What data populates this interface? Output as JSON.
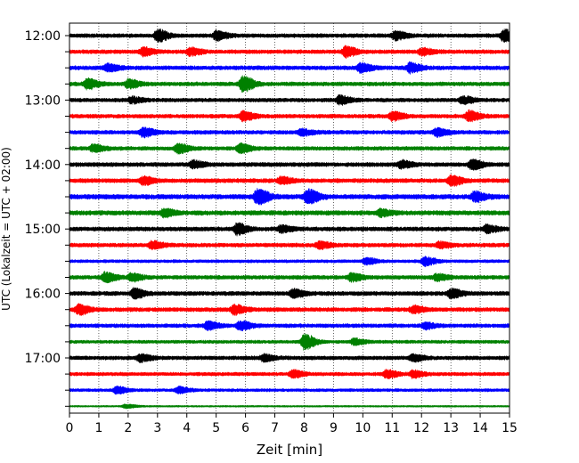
{
  "chart_data": {
    "type": "line",
    "xlabel": "Zeit  [min]",
    "ylabel": "UTC (Lokalzeit = UTC + 02:00)",
    "xlim": [
      0,
      15
    ],
    "xticks": [
      "0",
      "1",
      "2",
      "3",
      "4",
      "5",
      "6",
      "7",
      "8",
      "9",
      "10",
      "11",
      "12",
      "13",
      "14",
      "15"
    ],
    "vertical_grid": true,
    "grid_style": "dotted",
    "trace_interval_minutes": 15,
    "trace_colors": [
      "#000000",
      "#ff0000",
      "#0000ff",
      "#008000"
    ],
    "hour_labels": [
      "12:00",
      "13:00",
      "14:00",
      "15:00",
      "16:00",
      "17:00"
    ],
    "traces": [
      {
        "start": "12:00",
        "color": "#000000",
        "amplitude": 0.34,
        "events": [
          {
            "x": 3.0,
            "amp": 1.0
          },
          {
            "x": 5.0,
            "amp": 0.75
          },
          {
            "x": 11.1,
            "amp": 0.7
          },
          {
            "x": 14.8,
            "amp": 1.0
          }
        ]
      },
      {
        "start": "12:15",
        "color": "#ff0000",
        "amplitude": 0.34,
        "events": [
          {
            "x": 2.5,
            "amp": 0.65
          },
          {
            "x": 4.1,
            "amp": 0.6
          },
          {
            "x": 9.4,
            "amp": 0.85
          },
          {
            "x": 12.0,
            "amp": 0.55
          }
        ]
      },
      {
        "start": "12:30",
        "color": "#0000ff",
        "amplitude": 0.36,
        "events": [
          {
            "x": 1.3,
            "amp": 0.6
          },
          {
            "x": 9.9,
            "amp": 0.7
          },
          {
            "x": 11.6,
            "amp": 0.75
          }
        ]
      },
      {
        "start": "12:45",
        "color": "#008000",
        "amplitude": 0.34,
        "events": [
          {
            "x": 0.6,
            "amp": 0.8
          },
          {
            "x": 2.0,
            "amp": 0.7
          },
          {
            "x": 5.9,
            "amp": 1.25
          }
        ]
      },
      {
        "start": "13:00",
        "color": "#000000",
        "amplitude": 0.33,
        "events": [
          {
            "x": 2.1,
            "amp": 0.5
          },
          {
            "x": 9.2,
            "amp": 0.7
          },
          {
            "x": 13.4,
            "amp": 0.55
          }
        ]
      },
      {
        "start": "13:15",
        "color": "#ff0000",
        "amplitude": 0.34,
        "events": [
          {
            "x": 5.9,
            "amp": 0.75
          },
          {
            "x": 11.0,
            "amp": 0.7
          },
          {
            "x": 13.6,
            "amp": 0.85
          }
        ]
      },
      {
        "start": "13:30",
        "color": "#0000ff",
        "amplitude": 0.34,
        "events": [
          {
            "x": 2.5,
            "amp": 0.7
          },
          {
            "x": 7.9,
            "amp": 0.5
          },
          {
            "x": 12.5,
            "amp": 0.6
          }
        ]
      },
      {
        "start": "13:45",
        "color": "#008000",
        "amplitude": 0.33,
        "events": [
          {
            "x": 0.8,
            "amp": 0.6
          },
          {
            "x": 3.7,
            "amp": 0.75
          },
          {
            "x": 5.8,
            "amp": 0.7
          }
        ]
      },
      {
        "start": "14:00",
        "color": "#000000",
        "amplitude": 0.36,
        "events": [
          {
            "x": 4.2,
            "amp": 0.55
          },
          {
            "x": 11.3,
            "amp": 0.6
          },
          {
            "x": 13.7,
            "amp": 0.8
          }
        ]
      },
      {
        "start": "14:15",
        "color": "#ff0000",
        "amplitude": 0.36,
        "events": [
          {
            "x": 2.5,
            "amp": 0.6
          },
          {
            "x": 7.2,
            "amp": 0.55
          },
          {
            "x": 13.0,
            "amp": 0.8
          }
        ]
      },
      {
        "start": "14:30",
        "color": "#0000ff",
        "amplitude": 0.42,
        "events": [
          {
            "x": 6.4,
            "amp": 1.3
          },
          {
            "x": 8.1,
            "amp": 1.35
          },
          {
            "x": 13.8,
            "amp": 0.75
          }
        ]
      },
      {
        "start": "14:45",
        "color": "#008000",
        "amplitude": 0.4,
        "events": [
          {
            "x": 3.2,
            "amp": 0.6
          },
          {
            "x": 10.6,
            "amp": 0.55
          }
        ]
      },
      {
        "start": "15:00",
        "color": "#000000",
        "amplitude": 0.36,
        "events": [
          {
            "x": 5.7,
            "amp": 0.9
          },
          {
            "x": 7.2,
            "amp": 0.55
          },
          {
            "x": 14.2,
            "amp": 0.6
          }
        ]
      },
      {
        "start": "15:15",
        "color": "#ff0000",
        "amplitude": 0.34,
        "events": [
          {
            "x": 2.8,
            "amp": 0.6
          },
          {
            "x": 8.5,
            "amp": 0.6
          },
          {
            "x": 12.6,
            "amp": 0.5
          }
        ]
      },
      {
        "start": "15:30",
        "color": "#0000ff",
        "amplitude": 0.24,
        "events": [
          {
            "x": 10.1,
            "amp": 0.55
          },
          {
            "x": 12.1,
            "amp": 0.75
          }
        ]
      },
      {
        "start": "15:45",
        "color": "#008000",
        "amplitude": 0.34,
        "events": [
          {
            "x": 1.2,
            "amp": 0.8
          },
          {
            "x": 2.1,
            "amp": 0.6
          },
          {
            "x": 9.6,
            "amp": 0.6
          },
          {
            "x": 12.5,
            "amp": 0.55
          }
        ]
      },
      {
        "start": "16:00",
        "color": "#000000",
        "amplitude": 0.36,
        "events": [
          {
            "x": 2.2,
            "amp": 0.75
          },
          {
            "x": 7.6,
            "amp": 0.65
          },
          {
            "x": 13.0,
            "amp": 0.7
          }
        ]
      },
      {
        "start": "16:15",
        "color": "#ff0000",
        "amplitude": 0.36,
        "events": [
          {
            "x": 0.3,
            "amp": 0.8
          },
          {
            "x": 5.6,
            "amp": 0.75
          },
          {
            "x": 11.7,
            "amp": 0.55
          }
        ]
      },
      {
        "start": "16:30",
        "color": "#0000ff",
        "amplitude": 0.33,
        "events": [
          {
            "x": 4.7,
            "amp": 0.65
          },
          {
            "x": 5.8,
            "amp": 0.75
          },
          {
            "x": 12.1,
            "amp": 0.5
          }
        ]
      },
      {
        "start": "16:45",
        "color": "#008000",
        "amplitude": 0.26,
        "events": [
          {
            "x": 8.0,
            "amp": 1.3
          },
          {
            "x": 9.7,
            "amp": 0.5
          }
        ]
      },
      {
        "start": "17:00",
        "color": "#000000",
        "amplitude": 0.33,
        "events": [
          {
            "x": 2.4,
            "amp": 0.55
          },
          {
            "x": 6.6,
            "amp": 0.5
          },
          {
            "x": 11.7,
            "amp": 0.55
          }
        ]
      },
      {
        "start": "17:15",
        "color": "#ff0000",
        "amplitude": 0.3,
        "events": [
          {
            "x": 7.6,
            "amp": 0.6
          },
          {
            "x": 10.8,
            "amp": 0.65
          },
          {
            "x": 11.7,
            "amp": 0.55
          }
        ]
      },
      {
        "start": "17:30",
        "color": "#0000ff",
        "amplitude": 0.24,
        "events": [
          {
            "x": 1.6,
            "amp": 0.55
          },
          {
            "x": 3.7,
            "amp": 0.5
          }
        ]
      },
      {
        "start": "17:45",
        "color": "#008000",
        "amplitude": 0.1,
        "events": [
          {
            "x": 1.9,
            "amp": 0.3
          }
        ]
      }
    ]
  }
}
